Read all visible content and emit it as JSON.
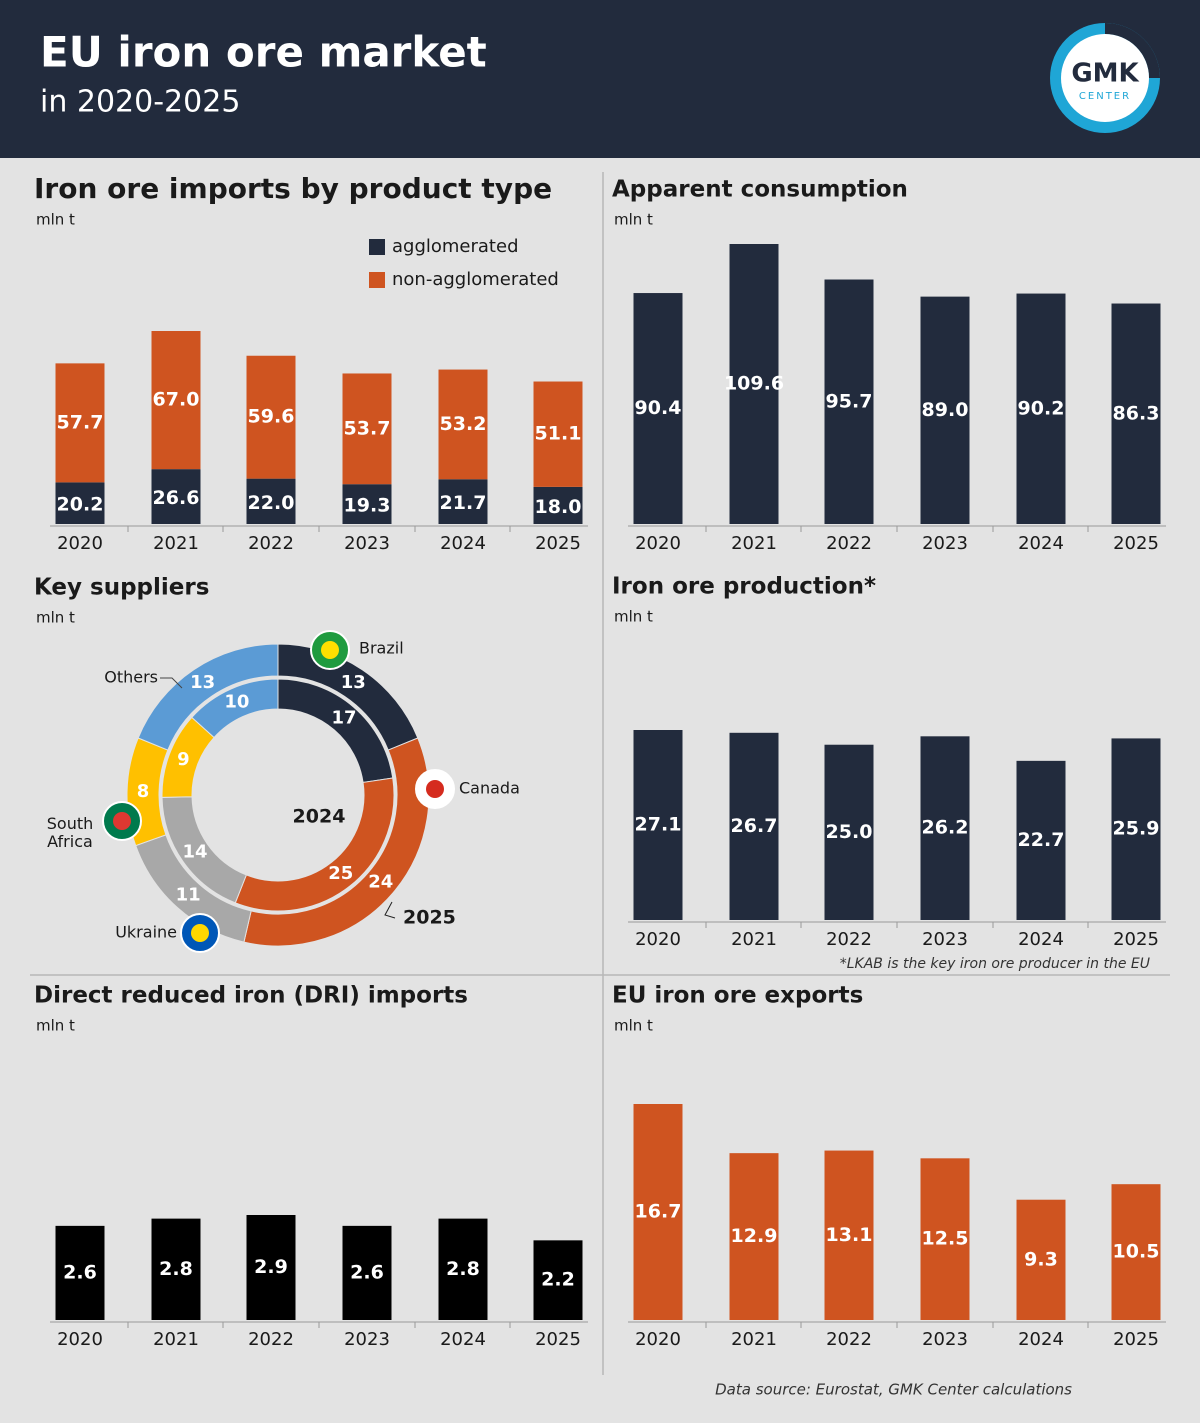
{
  "header": {
    "title": "EU iron ore market",
    "subtitle": "in 2020-2025",
    "logo": "GMK",
    "logo_sub": "CENTER"
  },
  "chart_data": [
    {
      "type": "stacked_bar",
      "title": "Iron ore imports by product type",
      "unit": "mln t",
      "categories": [
        "2020",
        "2021",
        "2022",
        "2023",
        "2024",
        "2025"
      ],
      "series": [
        {
          "name": "agglomerated",
          "color": "#222b3d",
          "values": [
            20.2,
            26.6,
            22.0,
            19.3,
            21.7,
            18.0
          ],
          "value_labels": [
            "20.2",
            "26.6",
            "22.0",
            "19.3",
            "21.7",
            "18.0"
          ]
        },
        {
          "name": "non-agglomerated",
          "color": "#cf5420",
          "values": [
            57.7,
            67.0,
            59.6,
            53.7,
            53.2,
            51.1
          ],
          "value_labels": [
            "57.7",
            "67.0",
            "59.6",
            "53.7",
            "53.2",
            "51.1"
          ]
        }
      ]
    },
    {
      "type": "bar",
      "title": "Apparent consumption",
      "unit": "mln t",
      "color": "#222b3d",
      "categories": [
        "2020",
        "2021",
        "2022",
        "2023",
        "2024",
        "2025"
      ],
      "values": [
        90.4,
        109.6,
        95.7,
        89.0,
        90.2,
        86.3
      ],
      "value_labels": [
        "90.4",
        "109.6",
        "95.7",
        "89.0",
        "90.2",
        "86.3"
      ]
    },
    {
      "type": "donut",
      "title": "Key suppliers",
      "unit": "mln t",
      "categories": [
        "Brazil",
        "Canada",
        "Ukraine",
        "South Africa",
        "Others"
      ],
      "colors": [
        "#222b3d",
        "#cf5420",
        "#a8a8a8",
        "#ffc000",
        "#5b9bd5"
      ],
      "series": [
        {
          "name": "2024",
          "values": [
            17,
            25,
            14,
            9,
            10
          ]
        },
        {
          "name": "2025",
          "values": [
            13,
            24,
            11,
            8,
            13
          ]
        }
      ]
    },
    {
      "type": "bar",
      "title": "Iron ore production*",
      "unit": "mln t",
      "color": "#222b3d",
      "categories": [
        "2020",
        "2021",
        "2022",
        "2023",
        "2024",
        "2025"
      ],
      "values": [
        27.1,
        26.7,
        25.0,
        26.2,
        22.7,
        25.9
      ],
      "value_labels": [
        "27.1",
        "26.7",
        "25.0",
        "26.2",
        "22.7",
        "25.9"
      ],
      "footnote": "*LKAB is the key iron ore producer in the EU"
    },
    {
      "type": "bar",
      "title": "Direct reduced iron (DRI) imports",
      "unit": "mln t",
      "color": "#000000",
      "categories": [
        "2020",
        "2021",
        "2022",
        "2023",
        "2024",
        "2025"
      ],
      "values": [
        2.6,
        2.8,
        2.9,
        2.6,
        2.8,
        2.2
      ]
    },
    {
      "type": "bar",
      "title": "EU iron ore exports",
      "unit": "mln t",
      "color": "#cf5420",
      "categories": [
        "2020",
        "2021",
        "2022",
        "2023",
        "2024",
        "2025"
      ],
      "values": [
        16.7,
        12.9,
        13.1,
        12.5,
        9.3,
        10.5
      ]
    }
  ],
  "source": "Data source: Eurostat, GMK Center calculations"
}
